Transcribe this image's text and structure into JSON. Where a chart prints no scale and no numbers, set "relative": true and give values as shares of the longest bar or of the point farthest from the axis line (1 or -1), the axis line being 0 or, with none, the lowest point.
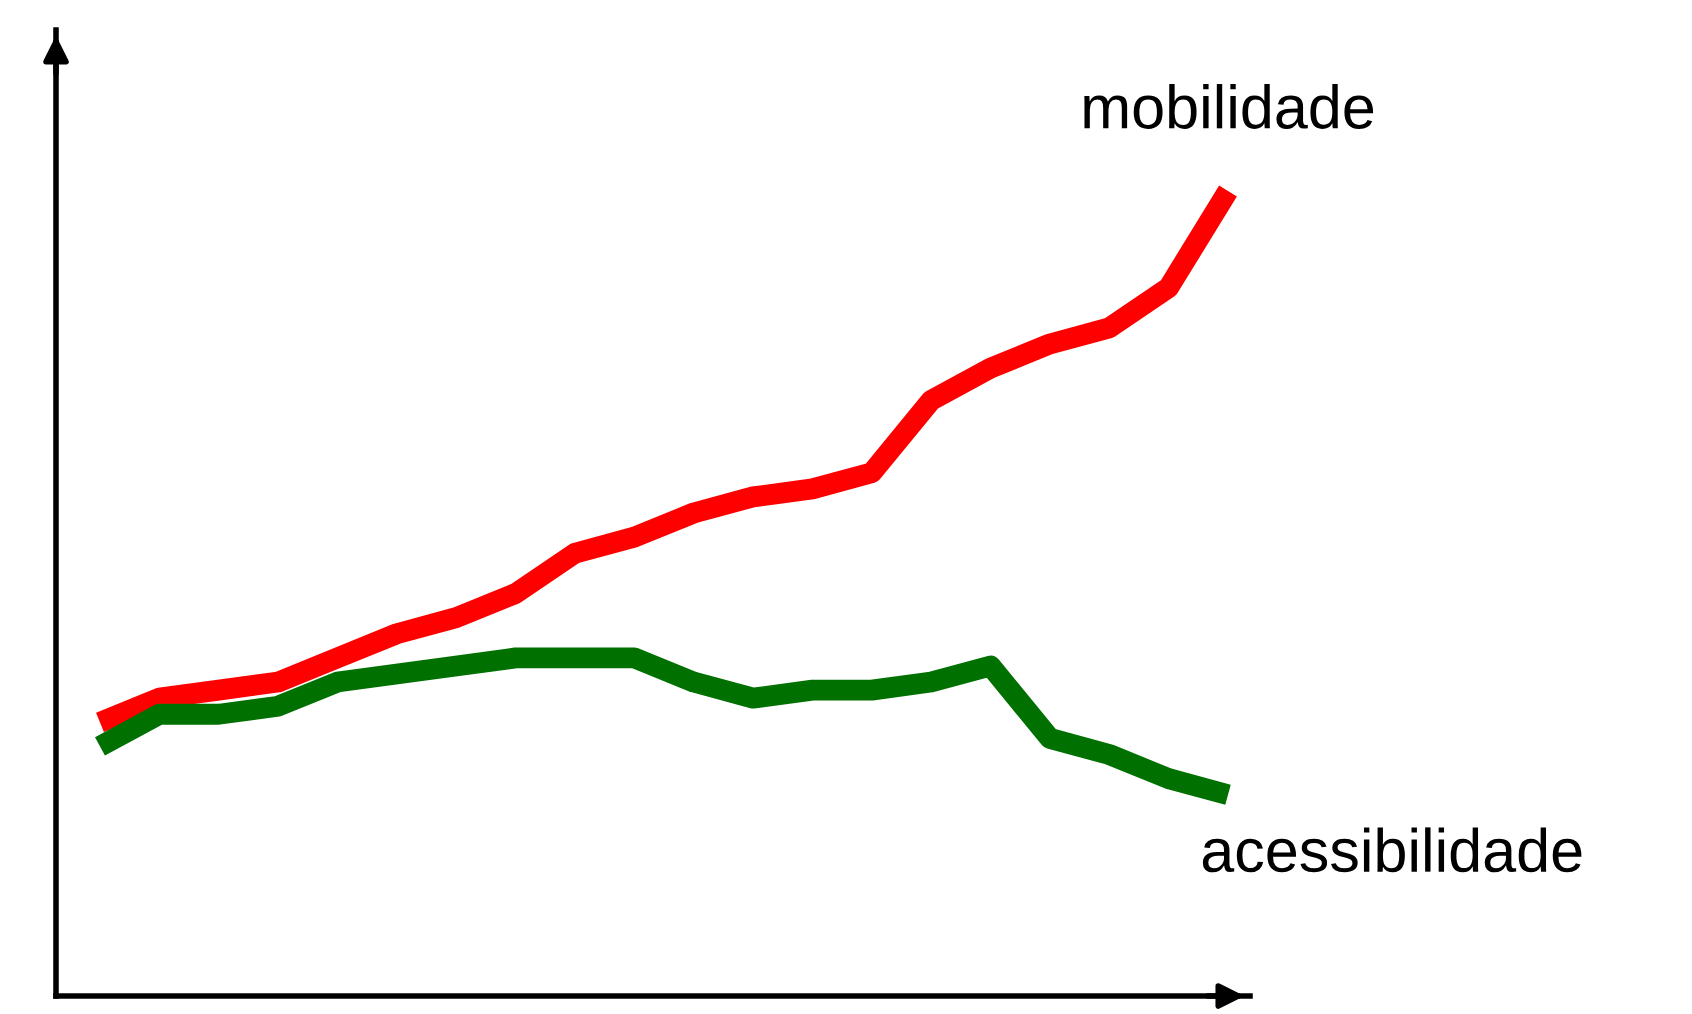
{
  "chart_data": {
    "type": "line",
    "relative": true,
    "categories": [
      null,
      null,
      null,
      null,
      null,
      null,
      null,
      null,
      null,
      null,
      null,
      null,
      null,
      null,
      null,
      null,
      null,
      null,
      null,
      null
    ],
    "series": [
      {
        "name": "mobilidade",
        "color": "#ff0000",
        "values": [
          0.34,
          0.37,
          0.38,
          0.39,
          0.42,
          0.45,
          0.47,
          0.5,
          0.55,
          0.57,
          0.6,
          0.62,
          0.63,
          0.65,
          0.74,
          0.78,
          0.81,
          0.83,
          0.88,
          1
        ]
      },
      {
        "name": "acessibilidade",
        "color": "#007000",
        "values": [
          0.31,
          0.35,
          0.35,
          0.36,
          0.39,
          0.4,
          0.41,
          0.42,
          0.42,
          0.42,
          0.39,
          0.37,
          0.38,
          0.38,
          0.39,
          0.41,
          0.32,
          0.3,
          0.27,
          0.25
        ]
      }
    ],
    "line_style": "solid",
    "marker": "none"
  }
}
